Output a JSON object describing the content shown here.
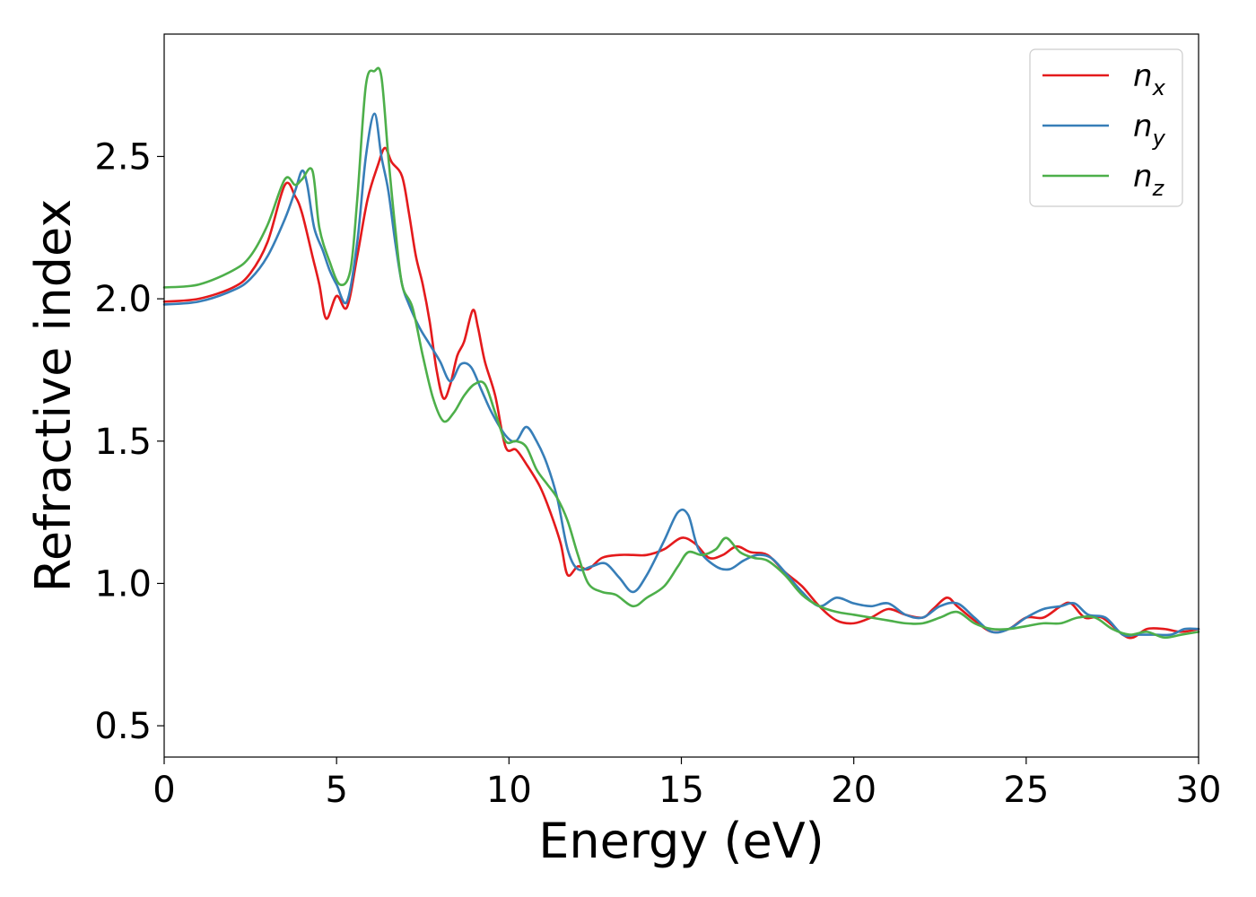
{
  "chart_data": {
    "type": "line",
    "xlabel": "Energy (eV)",
    "ylabel": "Refractive index",
    "xlim": [
      0,
      30
    ],
    "ylim": [
      0.39,
      2.93
    ],
    "xticks": [
      0,
      5,
      10,
      15,
      20,
      25,
      30
    ],
    "xtick_labels": [
      "0",
      "5",
      "10",
      "15",
      "20",
      "25",
      "30"
    ],
    "yticks": [
      0.5,
      1.0,
      1.5,
      2.0,
      2.5
    ],
    "ytick_labels": [
      "0.5",
      "1.0",
      "1.5",
      "2.0",
      "2.5"
    ],
    "grid": false,
    "legend_position": "top-right",
    "series": [
      {
        "name": "n",
        "subscript": "x",
        "color": "#e41a1c",
        "points": [
          [
            0,
            1.99
          ],
          [
            1,
            2.0
          ],
          [
            2,
            2.04
          ],
          [
            2.5,
            2.09
          ],
          [
            3,
            2.2
          ],
          [
            3.5,
            2.4
          ],
          [
            3.8,
            2.36
          ],
          [
            4.0,
            2.3
          ],
          [
            4.3,
            2.15
          ],
          [
            4.5,
            2.05
          ],
          [
            4.7,
            1.93
          ],
          [
            5.0,
            2.01
          ],
          [
            5.3,
            1.97
          ],
          [
            5.6,
            2.15
          ],
          [
            5.9,
            2.35
          ],
          [
            6.2,
            2.47
          ],
          [
            6.4,
            2.53
          ],
          [
            6.6,
            2.48
          ],
          [
            6.9,
            2.43
          ],
          [
            7.1,
            2.3
          ],
          [
            7.3,
            2.15
          ],
          [
            7.5,
            2.05
          ],
          [
            7.7,
            1.92
          ],
          [
            7.9,
            1.75
          ],
          [
            8.1,
            1.65
          ],
          [
            8.3,
            1.7
          ],
          [
            8.5,
            1.8
          ],
          [
            8.7,
            1.85
          ],
          [
            8.95,
            1.96
          ],
          [
            9.1,
            1.9
          ],
          [
            9.3,
            1.78
          ],
          [
            9.6,
            1.66
          ],
          [
            9.9,
            1.48
          ],
          [
            10.2,
            1.47
          ],
          [
            10.5,
            1.42
          ],
          [
            10.9,
            1.34
          ],
          [
            11.2,
            1.25
          ],
          [
            11.5,
            1.14
          ],
          [
            11.7,
            1.03
          ],
          [
            12.0,
            1.06
          ],
          [
            12.3,
            1.05
          ],
          [
            12.7,
            1.09
          ],
          [
            13.2,
            1.1
          ],
          [
            13.6,
            1.1
          ],
          [
            14.0,
            1.1
          ],
          [
            14.5,
            1.12
          ],
          [
            15.0,
            1.16
          ],
          [
            15.4,
            1.14
          ],
          [
            15.8,
            1.09
          ],
          [
            16.2,
            1.1
          ],
          [
            16.6,
            1.13
          ],
          [
            17.0,
            1.11
          ],
          [
            17.5,
            1.1
          ],
          [
            18.0,
            1.04
          ],
          [
            18.5,
            0.99
          ],
          [
            19.0,
            0.92
          ],
          [
            19.5,
            0.87
          ],
          [
            20.0,
            0.86
          ],
          [
            20.5,
            0.88
          ],
          [
            21.0,
            0.91
          ],
          [
            21.5,
            0.89
          ],
          [
            22.0,
            0.88
          ],
          [
            22.3,
            0.91
          ],
          [
            22.7,
            0.95
          ],
          [
            23.0,
            0.92
          ],
          [
            23.5,
            0.87
          ],
          [
            24.0,
            0.83
          ],
          [
            24.5,
            0.84
          ],
          [
            25.0,
            0.88
          ],
          [
            25.5,
            0.88
          ],
          [
            26.0,
            0.92
          ],
          [
            26.3,
            0.93
          ],
          [
            26.7,
            0.88
          ],
          [
            27.2,
            0.88
          ],
          [
            27.8,
            0.82
          ],
          [
            28.1,
            0.81
          ],
          [
            28.5,
            0.84
          ],
          [
            29.0,
            0.84
          ],
          [
            29.5,
            0.83
          ],
          [
            30,
            0.84
          ]
        ]
      },
      {
        "name": "n",
        "subscript": "y",
        "color": "#377eb8",
        "points": [
          [
            0,
            1.98
          ],
          [
            1,
            1.99
          ],
          [
            2,
            2.03
          ],
          [
            2.5,
            2.07
          ],
          [
            3,
            2.15
          ],
          [
            3.5,
            2.28
          ],
          [
            3.8,
            2.38
          ],
          [
            4.0,
            2.45
          ],
          [
            4.15,
            2.4
          ],
          [
            4.35,
            2.25
          ],
          [
            4.6,
            2.17
          ],
          [
            4.8,
            2.1
          ],
          [
            5.0,
            2.05
          ],
          [
            5.3,
            1.99
          ],
          [
            5.6,
            2.2
          ],
          [
            5.85,
            2.5
          ],
          [
            6.1,
            2.65
          ],
          [
            6.3,
            2.5
          ],
          [
            6.5,
            2.38
          ],
          [
            6.7,
            2.2
          ],
          [
            6.9,
            2.05
          ],
          [
            7.1,
            1.98
          ],
          [
            7.4,
            1.9
          ],
          [
            7.7,
            1.84
          ],
          [
            8.0,
            1.78
          ],
          [
            8.3,
            1.71
          ],
          [
            8.6,
            1.77
          ],
          [
            8.9,
            1.76
          ],
          [
            9.2,
            1.68
          ],
          [
            9.5,
            1.6
          ],
          [
            9.9,
            1.52
          ],
          [
            10.2,
            1.5
          ],
          [
            10.5,
            1.55
          ],
          [
            10.8,
            1.5
          ],
          [
            11.1,
            1.42
          ],
          [
            11.4,
            1.3
          ],
          [
            11.7,
            1.12
          ],
          [
            12.0,
            1.05
          ],
          [
            12.4,
            1.06
          ],
          [
            12.8,
            1.07
          ],
          [
            13.2,
            1.02
          ],
          [
            13.6,
            0.97
          ],
          [
            14.0,
            1.03
          ],
          [
            14.5,
            1.15
          ],
          [
            14.9,
            1.25
          ],
          [
            15.2,
            1.24
          ],
          [
            15.5,
            1.12
          ],
          [
            16.0,
            1.06
          ],
          [
            16.4,
            1.05
          ],
          [
            16.8,
            1.08
          ],
          [
            17.2,
            1.1
          ],
          [
            17.6,
            1.09
          ],
          [
            18.0,
            1.04
          ],
          [
            18.5,
            0.97
          ],
          [
            19.0,
            0.92
          ],
          [
            19.5,
            0.95
          ],
          [
            20.0,
            0.93
          ],
          [
            20.5,
            0.92
          ],
          [
            21.0,
            0.93
          ],
          [
            21.5,
            0.89
          ],
          [
            22.0,
            0.88
          ],
          [
            22.5,
            0.92
          ],
          [
            23.0,
            0.93
          ],
          [
            23.5,
            0.88
          ],
          [
            24.0,
            0.83
          ],
          [
            24.5,
            0.84
          ],
          [
            25.0,
            0.88
          ],
          [
            25.5,
            0.91
          ],
          [
            26.0,
            0.92
          ],
          [
            26.4,
            0.93
          ],
          [
            26.8,
            0.89
          ],
          [
            27.3,
            0.88
          ],
          [
            27.8,
            0.82
          ],
          [
            28.2,
            0.82
          ],
          [
            28.7,
            0.82
          ],
          [
            29.2,
            0.82
          ],
          [
            29.6,
            0.84
          ],
          [
            30,
            0.84
          ]
        ]
      },
      {
        "name": "n",
        "subscript": "z",
        "color": "#4daf4a",
        "points": [
          [
            0,
            2.04
          ],
          [
            1,
            2.05
          ],
          [
            2,
            2.1
          ],
          [
            2.5,
            2.15
          ],
          [
            3,
            2.26
          ],
          [
            3.5,
            2.42
          ],
          [
            3.8,
            2.4
          ],
          [
            4.0,
            2.42
          ],
          [
            4.3,
            2.45
          ],
          [
            4.5,
            2.25
          ],
          [
            4.8,
            2.13
          ],
          [
            5.1,
            2.05
          ],
          [
            5.4,
            2.1
          ],
          [
            5.6,
            2.35
          ],
          [
            5.85,
            2.75
          ],
          [
            6.1,
            2.8
          ],
          [
            6.3,
            2.78
          ],
          [
            6.5,
            2.5
          ],
          [
            6.7,
            2.25
          ],
          [
            6.9,
            2.05
          ],
          [
            7.2,
            1.97
          ],
          [
            7.5,
            1.8
          ],
          [
            7.8,
            1.65
          ],
          [
            8.1,
            1.57
          ],
          [
            8.4,
            1.6
          ],
          [
            8.7,
            1.66
          ],
          [
            9.0,
            1.7
          ],
          [
            9.3,
            1.7
          ],
          [
            9.6,
            1.6
          ],
          [
            9.9,
            1.5
          ],
          [
            10.2,
            1.5
          ],
          [
            10.5,
            1.48
          ],
          [
            10.8,
            1.4
          ],
          [
            11.1,
            1.35
          ],
          [
            11.4,
            1.3
          ],
          [
            11.7,
            1.22
          ],
          [
            12.0,
            1.1
          ],
          [
            12.3,
            1.0
          ],
          [
            12.7,
            0.97
          ],
          [
            13.1,
            0.96
          ],
          [
            13.6,
            0.92
          ],
          [
            14.0,
            0.95
          ],
          [
            14.5,
            0.99
          ],
          [
            14.9,
            1.06
          ],
          [
            15.2,
            1.11
          ],
          [
            15.6,
            1.1
          ],
          [
            16.0,
            1.12
          ],
          [
            16.3,
            1.16
          ],
          [
            16.7,
            1.11
          ],
          [
            17.1,
            1.09
          ],
          [
            17.5,
            1.08
          ],
          [
            18.0,
            1.03
          ],
          [
            18.5,
            0.96
          ],
          [
            19.0,
            0.92
          ],
          [
            19.5,
            0.9
          ],
          [
            20.0,
            0.89
          ],
          [
            20.5,
            0.88
          ],
          [
            21.0,
            0.87
          ],
          [
            21.5,
            0.86
          ],
          [
            22.0,
            0.86
          ],
          [
            22.5,
            0.88
          ],
          [
            23.0,
            0.9
          ],
          [
            23.5,
            0.86
          ],
          [
            24.0,
            0.84
          ],
          [
            24.5,
            0.84
          ],
          [
            25.0,
            0.85
          ],
          [
            25.5,
            0.86
          ],
          [
            26.0,
            0.86
          ],
          [
            26.5,
            0.88
          ],
          [
            27.0,
            0.88
          ],
          [
            27.5,
            0.84
          ],
          [
            28.0,
            0.82
          ],
          [
            28.5,
            0.83
          ],
          [
            29.0,
            0.81
          ],
          [
            29.5,
            0.82
          ],
          [
            30,
            0.83
          ]
        ]
      }
    ]
  }
}
